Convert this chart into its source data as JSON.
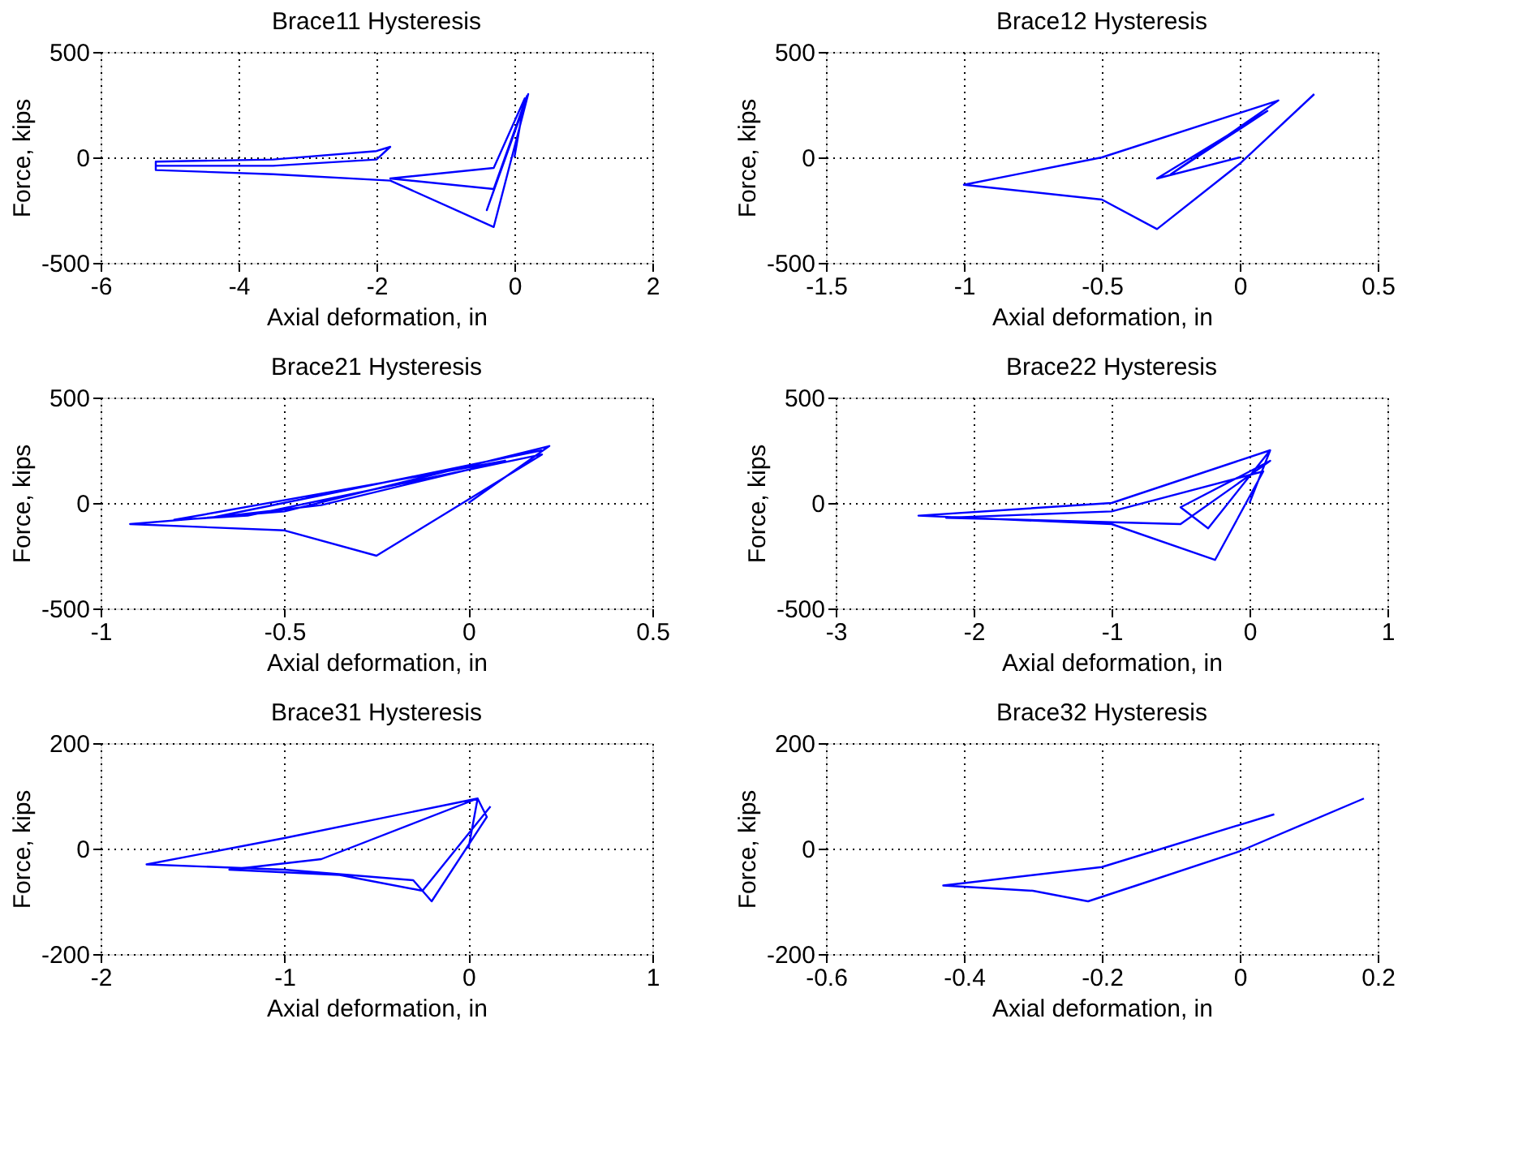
{
  "chart_data": [
    {
      "type": "line",
      "title": "Brace11 Hysteresis",
      "xlabel": "Axial deformation, in",
      "ylabel": "Force, kips",
      "xlim": [
        -6,
        2
      ],
      "ylim": [
        -500,
        500
      ],
      "xticks": [
        -6,
        -4,
        -2,
        0,
        2
      ],
      "yticks": [
        -500,
        0,
        500
      ],
      "grid": true,
      "series": [
        {
          "color": "#0000ff",
          "x": [
            0,
            0.15,
            -0.3,
            -1.8,
            -0.3,
            0.18,
            -0.4,
            0.2,
            -0.3,
            -1.8,
            -3.5,
            -5.2,
            -5.2,
            -3.5,
            -2,
            -1.8,
            -2,
            -3.5,
            -5.2
          ],
          "values": [
            0,
            280,
            -50,
            -100,
            -150,
            290,
            -250,
            300,
            -330,
            -110,
            -80,
            -60,
            -20,
            -10,
            30,
            50,
            -10,
            -40,
            -40
          ]
        }
      ]
    },
    {
      "type": "line",
      "title": "Brace12 Hysteresis",
      "xlabel": "Axial deformation, in",
      "ylabel": "Force, kips",
      "xlim": [
        -1.5,
        0.5
      ],
      "ylim": [
        -500,
        500
      ],
      "xticks": [
        -1.5,
        -1,
        -0.5,
        0,
        0.5
      ],
      "yticks": [
        -500,
        0,
        500
      ],
      "grid": true,
      "series": [
        {
          "color": "#0000ff",
          "x": [
            0,
            -0.3,
            0.1,
            -0.25,
            0.14,
            -0.5,
            -1.0,
            -0.5,
            -0.3,
            0,
            0.27
          ],
          "values": [
            0,
            -100,
            220,
            -80,
            270,
            0,
            -130,
            -200,
            -340,
            -30,
            300
          ]
        }
      ]
    },
    {
      "type": "line",
      "title": "Brace21 Hysteresis",
      "xlabel": "Axial deformation, in",
      "ylabel": "Force, kips",
      "xlim": [
        -1,
        0.5
      ],
      "ylim": [
        -500,
        500
      ],
      "xticks": [
        -1,
        -0.5,
        0,
        0.5
      ],
      "yticks": [
        -500,
        0,
        500
      ],
      "grid": true,
      "series": [
        {
          "color": "#0000ff",
          "x": [
            0,
            0.22,
            -0.5,
            -0.92,
            -0.5,
            -0.25,
            0.2,
            -0.6,
            -0.8,
            0.1,
            -0.4,
            -0.7,
            0.2
          ],
          "values": [
            0,
            270,
            -40,
            -100,
            -130,
            -250,
            230,
            -60,
            -80,
            200,
            -10,
            -70,
            250
          ]
        }
      ]
    },
    {
      "type": "line",
      "title": "Brace22 Hysteresis",
      "xlabel": "Axial deformation, in",
      "ylabel": "Force, kips",
      "xlim": [
        -3,
        1
      ],
      "ylim": [
        -500,
        500
      ],
      "xticks": [
        -3,
        -2,
        -1,
        0,
        1
      ],
      "yticks": [
        -500,
        0,
        500
      ],
      "grid": true,
      "series": [
        {
          "color": "#0000ff",
          "x": [
            0,
            0.15,
            -1,
            -2.4,
            -1,
            -0.25,
            0.1,
            -1,
            -2.2,
            -0.5,
            0.15,
            -0.5,
            -0.3,
            0.15
          ],
          "values": [
            0,
            250,
            0,
            -60,
            -100,
            -270,
            150,
            -40,
            -70,
            -100,
            200,
            -20,
            -120,
            250
          ]
        }
      ]
    },
    {
      "type": "line",
      "title": "Brace31 Hysteresis",
      "xlabel": "Axial deformation, in",
      "ylabel": "Force, kips",
      "xlim": [
        -2,
        1
      ],
      "ylim": [
        -200,
        200
      ],
      "xticks": [
        -2,
        -1,
        0,
        1
      ],
      "yticks": [
        -200,
        0,
        200
      ],
      "grid": true,
      "series": [
        {
          "color": "#0000ff",
          "x": [
            0,
            0.05,
            -1,
            -1.75,
            -1,
            -0.3,
            -0.2,
            0.1,
            0.05,
            -0.8,
            -1.3,
            -0.7,
            -0.25,
            0.12
          ],
          "values": [
            0,
            95,
            20,
            -30,
            -40,
            -60,
            -100,
            60,
            95,
            -20,
            -40,
            -50,
            -80,
            80
          ]
        }
      ]
    },
    {
      "type": "line",
      "title": "Brace32 Hysteresis",
      "xlabel": "Axial deformation, in",
      "ylabel": "Force, kips",
      "xlim": [
        -0.6,
        0.2
      ],
      "ylim": [
        -200,
        200
      ],
      "xticks": [
        -0.6,
        -0.4,
        -0.2,
        0,
        0.2
      ],
      "yticks": [
        -200,
        0,
        200
      ],
      "grid": true,
      "series": [
        {
          "color": "#0000ff",
          "x": [
            0.05,
            -0.2,
            -0.43,
            -0.3,
            -0.22,
            -0.15,
            0,
            0.18
          ],
          "values": [
            65,
            -35,
            -70,
            -80,
            -100,
            -70,
            -5,
            95
          ]
        }
      ]
    }
  ]
}
